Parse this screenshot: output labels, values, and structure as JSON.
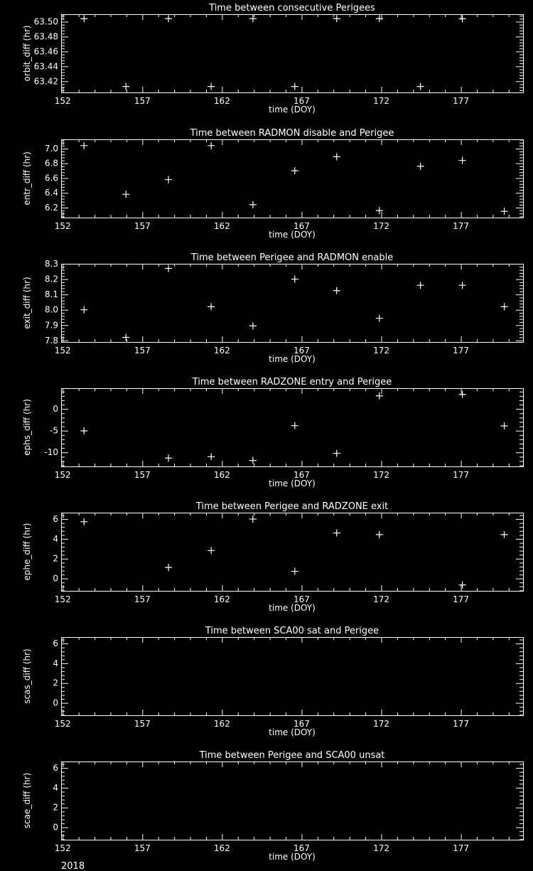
{
  "colors": {
    "background": "#000000",
    "foreground": "#ffffff"
  },
  "year_label": "2018",
  "chart_data": [
    {
      "type": "scatter",
      "marker": "plus",
      "title": "Time between consecutive Perigees",
      "xlabel": "time (DOY)",
      "ylabel": "orbit_diff (hr)",
      "xlim": [
        151.9,
        180.9
      ],
      "xticks": [
        152,
        157,
        162,
        167,
        172,
        177
      ],
      "ylim": [
        63.405,
        63.51
      ],
      "yticks": [
        63.42,
        63.44,
        63.46,
        63.48,
        63.5
      ],
      "ydecimals": 2,
      "x": [
        153.34,
        155.97,
        158.64,
        161.32,
        163.94,
        166.57,
        169.2,
        171.88,
        174.46,
        177.09
      ],
      "y": [
        63.504,
        63.413,
        63.504,
        63.413,
        63.504,
        63.413,
        63.504,
        63.504,
        63.413,
        63.504
      ]
    },
    {
      "type": "scatter",
      "marker": "plus",
      "title": "Time between RADMON disable and Perigee",
      "xlabel": "time (DOY)",
      "ylabel": "entr_diff (hr)",
      "xlim": [
        151.9,
        180.9
      ],
      "xticks": [
        152,
        157,
        162,
        167,
        172,
        177
      ],
      "ylim": [
        6.065,
        7.125
      ],
      "yticks": [
        6.2,
        6.4,
        6.6,
        6.8,
        7.0
      ],
      "ydecimals": 1,
      "x": [
        153.34,
        155.97,
        158.64,
        161.32,
        163.94,
        166.57,
        169.2,
        171.88,
        174.46,
        177.09,
        179.72
      ],
      "y": [
        7.04,
        6.38,
        6.58,
        7.04,
        6.24,
        6.7,
        6.89,
        6.16,
        6.76,
        6.84,
        6.15
      ]
    },
    {
      "type": "scatter",
      "marker": "plus",
      "title": "Time between Perigee and RADMON enable",
      "xlabel": "time (DOY)",
      "ylabel": "exit_diff (hr)",
      "xlim": [
        151.9,
        180.9
      ],
      "xticks": [
        152,
        157,
        162,
        167,
        172,
        177
      ],
      "ylim": [
        7.79,
        8.3
      ],
      "yticks": [
        7.8,
        7.9,
        8.0,
        8.1,
        8.2,
        8.3
      ],
      "ydecimals": 1,
      "x": [
        153.34,
        155.97,
        158.64,
        161.32,
        163.94,
        166.57,
        169.2,
        171.88,
        174.46,
        177.09,
        179.72
      ],
      "y": [
        8.0,
        7.82,
        8.27,
        8.02,
        7.895,
        8.2,
        8.125,
        7.945,
        8.16,
        8.16,
        8.02
      ]
    },
    {
      "type": "scatter",
      "marker": "plus",
      "title": "Time between RADZONE entry and Perigee",
      "xlabel": "time (DOY)",
      "ylabel": "ephs_diff (hr)",
      "xlim": [
        151.9,
        180.9
      ],
      "xticks": [
        152,
        157,
        162,
        167,
        172,
        177
      ],
      "ylim": [
        -13.24,
        4.78
      ],
      "yticks": [
        -10,
        -5,
        0
      ],
      "ydecimals": 0,
      "x": [
        153.34,
        158.64,
        161.32,
        163.94,
        166.57,
        169.2,
        171.88,
        177.09,
        179.72
      ],
      "y": [
        -5.05,
        -11.32,
        -11.0,
        -11.87,
        -3.85,
        -10.22,
        3.02,
        3.35,
        -3.9
      ]
    },
    {
      "type": "scatter",
      "marker": "plus",
      "title": "Time between Perigee and RADZONE exit",
      "xlabel": "time (DOY)",
      "ylabel": "ephe_diff (hr)",
      "xlim": [
        151.9,
        180.9
      ],
      "xticks": [
        152,
        157,
        162,
        167,
        172,
        177
      ],
      "ylim": [
        -1.25,
        6.65
      ],
      "yticks": [
        0,
        2,
        4,
        6
      ],
      "ydecimals": 0,
      "x": [
        153.34,
        158.64,
        161.32,
        163.94,
        166.57,
        169.2,
        171.88,
        177.09,
        179.72
      ],
      "y": [
        5.73,
        1.11,
        2.82,
        6.0,
        0.72,
        4.6,
        4.43,
        -0.65,
        4.43
      ]
    },
    {
      "type": "scatter",
      "marker": "plus",
      "title": "Time between SCA00 sat and Perigee",
      "xlabel": "time (DOY)",
      "ylabel": "scas_diff (hr)",
      "xlim": [
        151.9,
        180.9
      ],
      "xticks": [
        152,
        157,
        162,
        167,
        172,
        177
      ],
      "ylim": [
        -1.25,
        6.65
      ],
      "yticks": [
        0,
        2,
        4,
        6
      ],
      "ydecimals": 0,
      "x": [],
      "y": []
    },
    {
      "type": "scatter",
      "marker": "plus",
      "title": "Time between Perigee and SCA00 unsat",
      "xlabel": "time (DOY)",
      "ylabel": "scae_diff (hr)",
      "xlim": [
        151.9,
        180.9
      ],
      "xticks": [
        152,
        157,
        162,
        167,
        172,
        177
      ],
      "ylim": [
        -1.25,
        6.65
      ],
      "yticks": [
        0,
        2,
        4,
        6
      ],
      "ydecimals": 0,
      "x": [],
      "y": []
    }
  ]
}
